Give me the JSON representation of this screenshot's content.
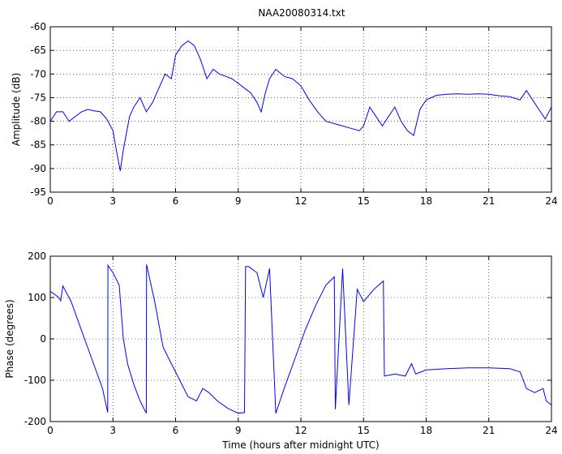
{
  "chart_data": [
    {
      "type": "line",
      "title": "NAA20080314.txt",
      "xlabel": "",
      "ylabel": "Amplitude (dB)",
      "xlim": [
        0,
        24
      ],
      "ylim": [
        -95,
        -60
      ],
      "xticks": [
        0,
        3,
        6,
        9,
        12,
        15,
        18,
        21,
        24
      ],
      "yticks": [
        -95,
        -90,
        -85,
        -80,
        -75,
        -70,
        -65,
        -60
      ],
      "grid": true,
      "color": "#0000ff",
      "series": [
        {
          "x": [
            0,
            0.3,
            0.6,
            0.9,
            1.2,
            1.5,
            1.8,
            2.1,
            2.4,
            2.7,
            3.0,
            3.2,
            3.35,
            3.5,
            3.8,
            4.0,
            4.3,
            4.6,
            4.9,
            5.2,
            5.5,
            5.8,
            6.0,
            6.3,
            6.6,
            6.9,
            7.2,
            7.5,
            7.8,
            8.1,
            8.4,
            8.7,
            9.0,
            9.3,
            9.6,
            9.9,
            10.1,
            10.3,
            10.5,
            10.8,
            11.2,
            11.6,
            12.0,
            12.4,
            12.8,
            13.2,
            13.6,
            14.0,
            14.4,
            14.8,
            15.0,
            15.3,
            15.6,
            15.9,
            16.2,
            16.5,
            16.8,
            17.1,
            17.4,
            17.7,
            18.0,
            18.5,
            19.0,
            19.5,
            20.0,
            20.5,
            21.0,
            21.5,
            22.0,
            22.5,
            22.8,
            23.1,
            23.4,
            23.7,
            24.0
          ],
          "values": [
            -80,
            -78,
            -78,
            -80,
            -79,
            -78,
            -77.5,
            -77.8,
            -78,
            -79.5,
            -82,
            -87,
            -90.5,
            -86,
            -79,
            -77,
            -75,
            -78,
            -76,
            -73,
            -70,
            -71,
            -66,
            -64,
            -63,
            -64,
            -67,
            -71,
            -69,
            -70,
            -70.5,
            -71,
            -72,
            -73,
            -74,
            -76,
            -78,
            -74,
            -71,
            -69,
            -70.5,
            -71,
            -72.5,
            -75.5,
            -78,
            -80,
            -80.5,
            -81,
            -81.5,
            -82,
            -81,
            -77,
            -79,
            -81,
            -79,
            -77,
            -80,
            -82,
            -83,
            -77.5,
            -75.5,
            -74.5,
            -74.3,
            -74.2,
            -74.3,
            -74.2,
            -74.3,
            -74.6,
            -74.8,
            -75.5,
            -73.5,
            -75.5,
            -77.5,
            -79.5,
            -77
          ]
        }
      ]
    },
    {
      "type": "line",
      "title": "",
      "xlabel": "Time (hours after midnight UTC)",
      "ylabel": "Phase (degrees)",
      "xlim": [
        0,
        24
      ],
      "ylim": [
        -200,
        200
      ],
      "xticks": [
        0,
        3,
        6,
        9,
        12,
        15,
        18,
        21,
        24
      ],
      "yticks": [
        -200,
        -100,
        0,
        100,
        200
      ],
      "grid": true,
      "color": "#0000ff",
      "series": [
        {
          "x": [
            0,
            0.2,
            0.4,
            0.5,
            0.6,
            1.0,
            1.5,
            2.0,
            2.5,
            2.75,
            2.76,
            3.0,
            3.3,
            3.5,
            3.7,
            4.0,
            4.3,
            4.6,
            4.61,
            5.0,
            5.4,
            5.8,
            6.2,
            6.6,
            7.0,
            7.3,
            7.6,
            8.0,
            8.5,
            9.0,
            9.3,
            9.35,
            9.5,
            9.9,
            10.2,
            10.5,
            10.8,
            11.2,
            11.7,
            12.2,
            12.7,
            13.2,
            13.6,
            13.65,
            14.0,
            14.3,
            14.7,
            15.0,
            15.5,
            15.95,
            16.0,
            16.5,
            17.0,
            17.3,
            17.5,
            18.0,
            19.0,
            20.0,
            21.0,
            22.0,
            22.5,
            22.8,
            23.2,
            23.6,
            23.75,
            24.0
          ],
          "values": [
            115,
            108,
            100,
            92,
            128,
            90,
            20,
            -50,
            -120,
            -178,
            178,
            160,
            130,
            0,
            -60,
            -110,
            -150,
            -180,
            180,
            90,
            -20,
            -60,
            -100,
            -140,
            -150,
            -120,
            -130,
            -150,
            -168,
            -180,
            -178,
            175,
            175,
            160,
            100,
            170,
            -180,
            -120,
            -50,
            20,
            80,
            130,
            150,
            -170,
            170,
            -160,
            120,
            90,
            120,
            140,
            -90,
            -85,
            -90,
            -60,
            -85,
            -75,
            -72,
            -70,
            -70,
            -72,
            -80,
            -120,
            -130,
            -120,
            -150,
            -160
          ]
        }
      ]
    }
  ]
}
